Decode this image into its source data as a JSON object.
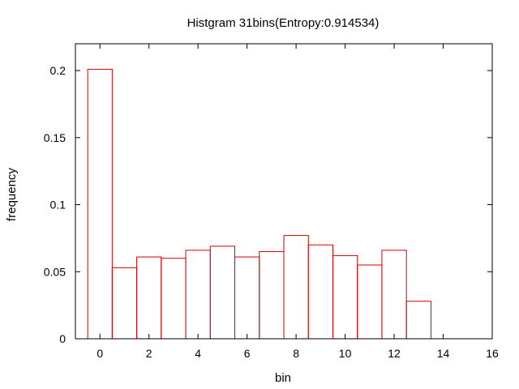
{
  "chart_data": {
    "type": "bar",
    "title": "Histgram 31bins(Entropy:0.914534)",
    "xlabel": "bin",
    "ylabel": "frequency",
    "xlim": [
      -1,
      16
    ],
    "ylim": [
      0,
      0.22
    ],
    "x_ticks": [
      "0",
      "2",
      "4",
      "6",
      "8",
      "10",
      "12",
      "14",
      "16"
    ],
    "y_ticks": [
      "0",
      "0.05",
      "0.1",
      "0.15",
      "0.2"
    ],
    "bar_width": 1,
    "grid": false,
    "legend": "none",
    "categories": [
      0,
      1,
      2,
      3,
      4,
      5,
      6,
      7,
      8,
      9,
      10,
      11,
      12,
      13
    ],
    "values": [
      0.201,
      0.053,
      0.061,
      0.06,
      0.066,
      0.069,
      0.061,
      0.065,
      0.077,
      0.07,
      0.062,
      0.055,
      0.066,
      0.028
    ],
    "bar_color": "#d40000"
  }
}
